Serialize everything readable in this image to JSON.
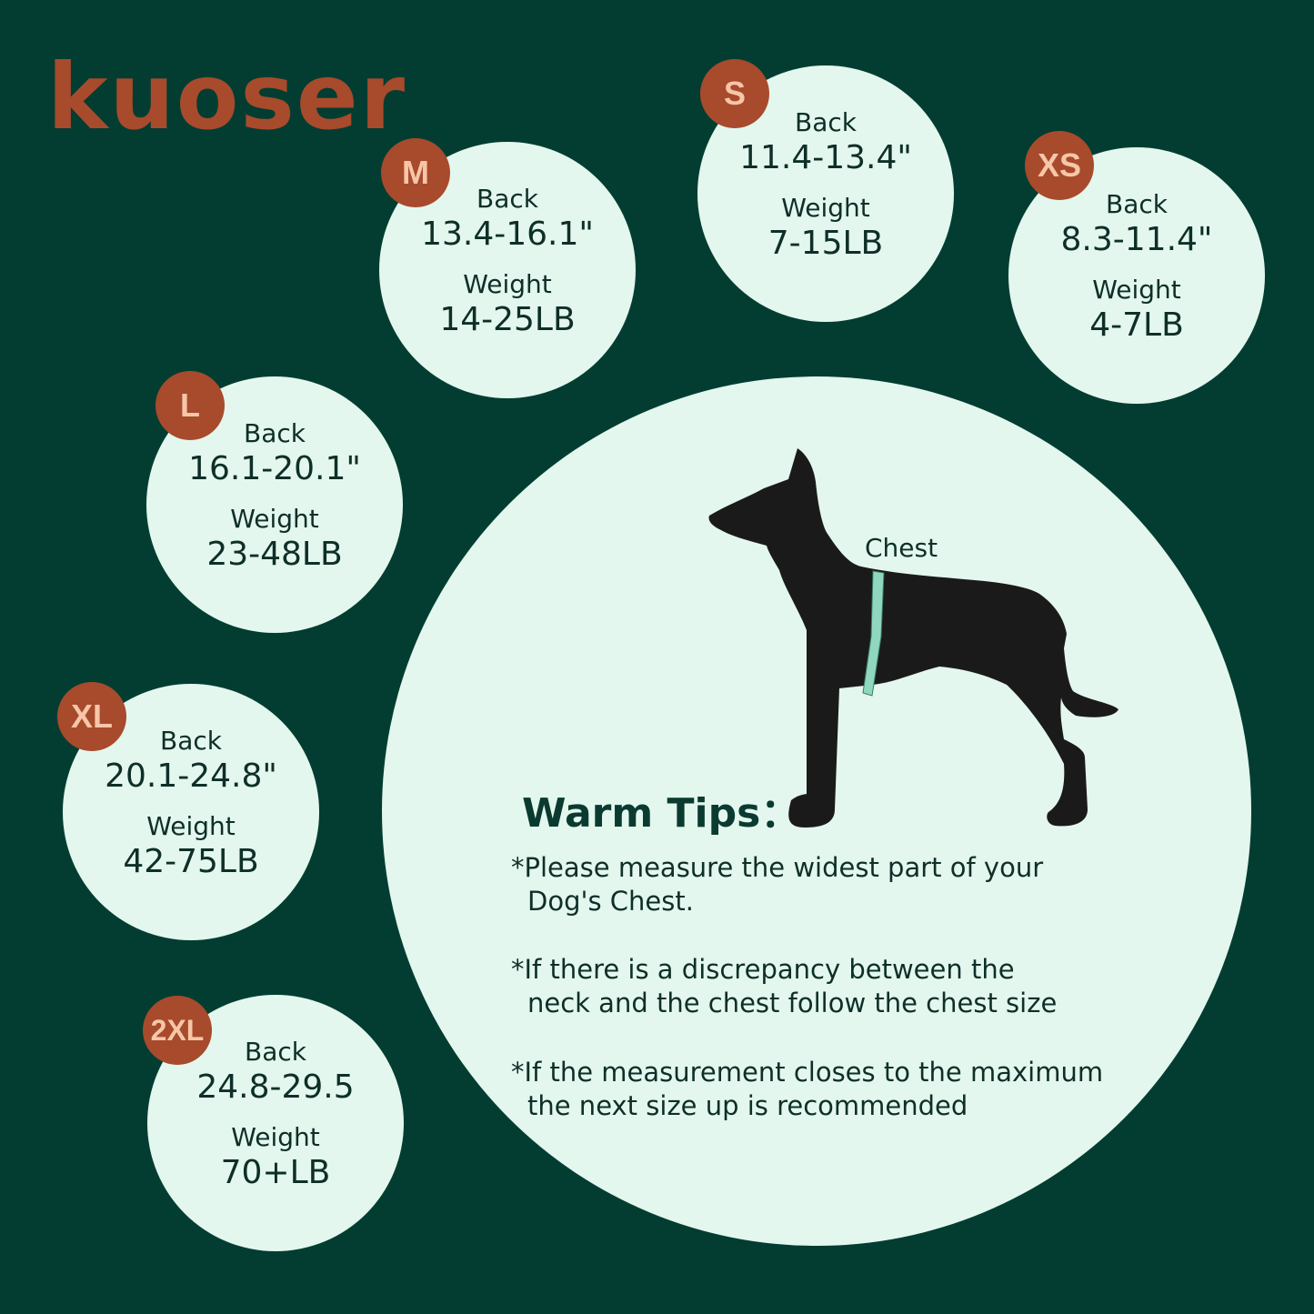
{
  "brand": {
    "logo_text": "kuoser",
    "color": "#a84a2c"
  },
  "colors": {
    "background": "#033d31",
    "circle": "#e3f7ee",
    "badge": "#a84a2c",
    "tape": "#8fd8bf"
  },
  "labels": {
    "back": "Back",
    "weight": "Weight"
  },
  "sizes": [
    {
      "size": "XS",
      "back": "8.3-11.4\"",
      "weight": "4-7LB"
    },
    {
      "size": "S",
      "back": "11.4-13.4\"",
      "weight": "7-15LB"
    },
    {
      "size": "M",
      "back": "13.4-16.1\"",
      "weight": "14-25LB"
    },
    {
      "size": "L",
      "back": "16.1-20.1\"",
      "weight": "23-48LB"
    },
    {
      "size": "XL",
      "back": "20.1-24.8\"",
      "weight": "42-75LB"
    },
    {
      "size": "2XL",
      "back": "24.8-29.5",
      "weight": "70+LB"
    }
  ],
  "diagram": {
    "chest_label": "Chest",
    "icon": "dog-silhouette"
  },
  "tips": {
    "title": "Warm Tips：",
    "items": [
      {
        "line1": "*Please measure the widest part of your",
        "line2": "Dog's Chest."
      },
      {
        "line1": "*If there is a discrepancy between the",
        "line2": "neck and the chest follow the chest size"
      },
      {
        "line1": "*If the measurement closes to the maximum",
        "line2": "the next size up is recommended"
      }
    ]
  }
}
